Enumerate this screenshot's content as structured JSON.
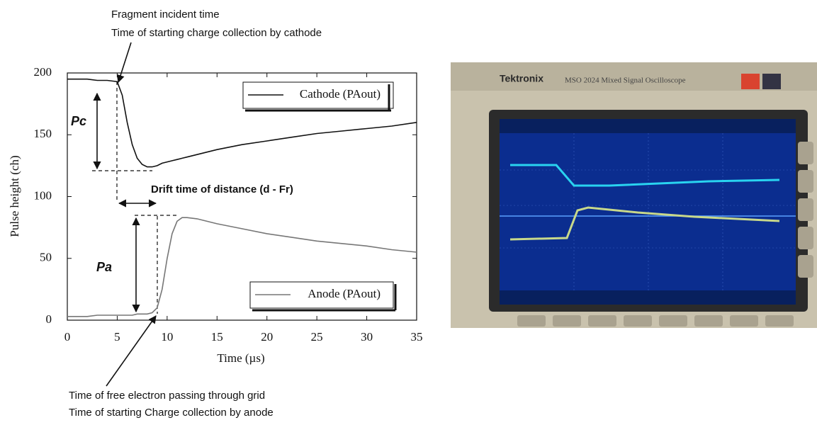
{
  "chart_data": {
    "type": "line",
    "x_label": "Time (µs)",
    "y_label": "Pulse height (ch)",
    "xlim": [
      0,
      35
    ],
    "ylim": [
      0,
      200
    ],
    "xticks": [
      0,
      5,
      10,
      15,
      20,
      25,
      30,
      35
    ],
    "yticks": [
      0,
      50,
      100,
      150,
      200
    ],
    "grid": false,
    "x": [
      0,
      1,
      2,
      3,
      4,
      5,
      5.5,
      6,
      6.5,
      7,
      7.5,
      8,
      8.5,
      9,
      9.5,
      10,
      10.5,
      11,
      11.5,
      12,
      13,
      14,
      15,
      17.5,
      20,
      22.5,
      25,
      27.5,
      30,
      32.5,
      35
    ],
    "series": [
      {
        "name": "Cathode (PAout)",
        "color": "#111111",
        "values": [
          195,
          195,
          195,
          194,
          194,
          193,
          182,
          160,
          142,
          131,
          126,
          124,
          124,
          125,
          127,
          128,
          129,
          130,
          131,
          132,
          134,
          136,
          138,
          142,
          145,
          148,
          151,
          153,
          155,
          157,
          160
        ]
      },
      {
        "name": "Anode (PAout)",
        "color": "#777777",
        "values": [
          3,
          3,
          3,
          4,
          4,
          4,
          4,
          4,
          4,
          5,
          5,
          5,
          6,
          10,
          25,
          50,
          70,
          80,
          83,
          83,
          82,
          80,
          78,
          74,
          70,
          67,
          64,
          62,
          60,
          57,
          55
        ]
      }
    ],
    "annotations": [
      "Fragment incident time",
      "Time of starting charge collection by cathode",
      "Pc",
      "Drift time of distance (d - Fr)",
      "Pa",
      "Time of free electron passing through grid",
      "Time of starting Charge collection by anode"
    ]
  },
  "photo": {
    "brand": "Tektronix",
    "model": "MSO 2024 Mixed Signal Oscilloscope"
  }
}
